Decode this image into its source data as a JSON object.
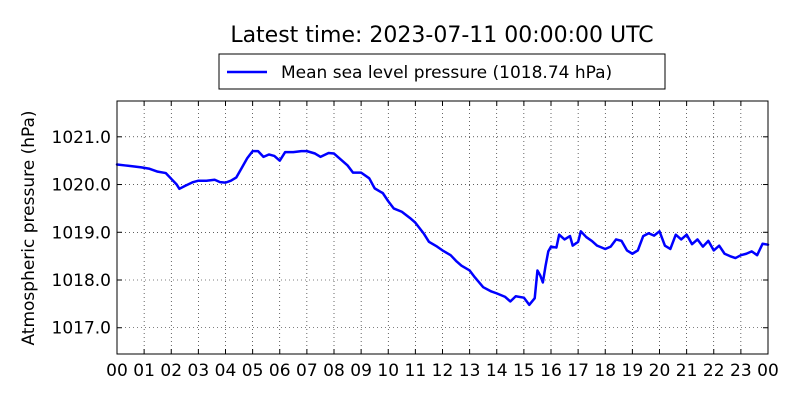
{
  "chart_data": {
    "type": "line",
    "title": "Latest time: 2023-07-11 00:00:00 UTC",
    "ylabel": "Atmospheric pressure (hPa)",
    "xlabel": "",
    "xlim": [
      0,
      24
    ],
    "ylim": [
      1016.45,
      1021.75
    ],
    "x_tick_labels": [
      "00",
      "01",
      "02",
      "03",
      "04",
      "05",
      "06",
      "07",
      "08",
      "09",
      "10",
      "11",
      "12",
      "13",
      "14",
      "15",
      "16",
      "17",
      "18",
      "19",
      "20",
      "21",
      "22",
      "23",
      "00"
    ],
    "y_ticks": [
      1017.0,
      1018.0,
      1019.0,
      1020.0,
      1021.0
    ],
    "y_tick_labels": [
      "1017.0",
      "1018.0",
      "1019.0",
      "1020.0",
      "1021.0"
    ],
    "grid": true,
    "legend_position": "top-center, above plot",
    "series": [
      {
        "name": "Mean sea level pressure (1018.74 hPa)",
        "color": "#0000ff",
        "points": [
          [
            0.0,
            1020.42
          ],
          [
            0.3,
            1020.4
          ],
          [
            0.6,
            1020.38
          ],
          [
            0.9,
            1020.36
          ],
          [
            1.2,
            1020.33
          ],
          [
            1.5,
            1020.27
          ],
          [
            1.8,
            1020.24
          ],
          [
            2.0,
            1020.12
          ],
          [
            2.2,
            1020.0
          ],
          [
            2.3,
            1019.91
          ],
          [
            2.5,
            1019.97
          ],
          [
            2.8,
            1020.05
          ],
          [
            3.0,
            1020.08
          ],
          [
            3.3,
            1020.08
          ],
          [
            3.6,
            1020.1
          ],
          [
            3.8,
            1020.05
          ],
          [
            4.0,
            1020.04
          ],
          [
            4.2,
            1020.08
          ],
          [
            4.4,
            1020.15
          ],
          [
            4.6,
            1020.35
          ],
          [
            4.8,
            1020.55
          ],
          [
            5.0,
            1020.7
          ],
          [
            5.2,
            1020.7
          ],
          [
            5.4,
            1020.58
          ],
          [
            5.6,
            1020.63
          ],
          [
            5.8,
            1020.6
          ],
          [
            6.0,
            1020.5
          ],
          [
            6.2,
            1020.68
          ],
          [
            6.5,
            1020.68
          ],
          [
            6.8,
            1020.7
          ],
          [
            7.0,
            1020.7
          ],
          [
            7.3,
            1020.65
          ],
          [
            7.5,
            1020.58
          ],
          [
            7.8,
            1020.66
          ],
          [
            8.0,
            1020.65
          ],
          [
            8.2,
            1020.55
          ],
          [
            8.5,
            1020.4
          ],
          [
            8.7,
            1020.25
          ],
          [
            9.0,
            1020.25
          ],
          [
            9.3,
            1020.13
          ],
          [
            9.5,
            1019.92
          ],
          [
            9.8,
            1019.82
          ],
          [
            10.0,
            1019.65
          ],
          [
            10.2,
            1019.5
          ],
          [
            10.5,
            1019.43
          ],
          [
            10.8,
            1019.3
          ],
          [
            11.0,
            1019.2
          ],
          [
            11.3,
            1018.98
          ],
          [
            11.5,
            1018.8
          ],
          [
            11.8,
            1018.7
          ],
          [
            12.0,
            1018.62
          ],
          [
            12.3,
            1018.52
          ],
          [
            12.5,
            1018.4
          ],
          [
            12.7,
            1018.3
          ],
          [
            13.0,
            1018.2
          ],
          [
            13.2,
            1018.05
          ],
          [
            13.5,
            1017.85
          ],
          [
            13.8,
            1017.76
          ],
          [
            14.0,
            1017.72
          ],
          [
            14.3,
            1017.65
          ],
          [
            14.5,
            1017.55
          ],
          [
            14.7,
            1017.66
          ],
          [
            15.0,
            1017.63
          ],
          [
            15.2,
            1017.48
          ],
          [
            15.4,
            1017.62
          ],
          [
            15.5,
            1018.2
          ],
          [
            15.6,
            1018.1
          ],
          [
            15.7,
            1017.95
          ],
          [
            15.8,
            1018.3
          ],
          [
            15.9,
            1018.6
          ],
          [
            16.0,
            1018.7
          ],
          [
            16.2,
            1018.68
          ],
          [
            16.3,
            1018.95
          ],
          [
            16.5,
            1018.85
          ],
          [
            16.7,
            1018.92
          ],
          [
            16.8,
            1018.72
          ],
          [
            17.0,
            1018.8
          ],
          [
            17.1,
            1019.02
          ],
          [
            17.3,
            1018.9
          ],
          [
            17.5,
            1018.82
          ],
          [
            17.7,
            1018.72
          ],
          [
            18.0,
            1018.65
          ],
          [
            18.2,
            1018.7
          ],
          [
            18.4,
            1018.85
          ],
          [
            18.6,
            1018.82
          ],
          [
            18.8,
            1018.62
          ],
          [
            19.0,
            1018.55
          ],
          [
            19.2,
            1018.62
          ],
          [
            19.4,
            1018.92
          ],
          [
            19.6,
            1018.98
          ],
          [
            19.8,
            1018.93
          ],
          [
            20.0,
            1019.02
          ],
          [
            20.2,
            1018.72
          ],
          [
            20.4,
            1018.65
          ],
          [
            20.6,
            1018.95
          ],
          [
            20.8,
            1018.85
          ],
          [
            21.0,
            1018.95
          ],
          [
            21.2,
            1018.75
          ],
          [
            21.4,
            1018.85
          ],
          [
            21.6,
            1018.7
          ],
          [
            21.8,
            1018.82
          ],
          [
            22.0,
            1018.62
          ],
          [
            22.2,
            1018.72
          ],
          [
            22.4,
            1018.55
          ],
          [
            22.6,
            1018.5
          ],
          [
            22.8,
            1018.46
          ],
          [
            23.0,
            1018.52
          ],
          [
            23.2,
            1018.55
          ],
          [
            23.4,
            1018.6
          ],
          [
            23.6,
            1018.52
          ],
          [
            23.8,
            1018.76
          ],
          [
            24.0,
            1018.74
          ]
        ]
      }
    ]
  }
}
